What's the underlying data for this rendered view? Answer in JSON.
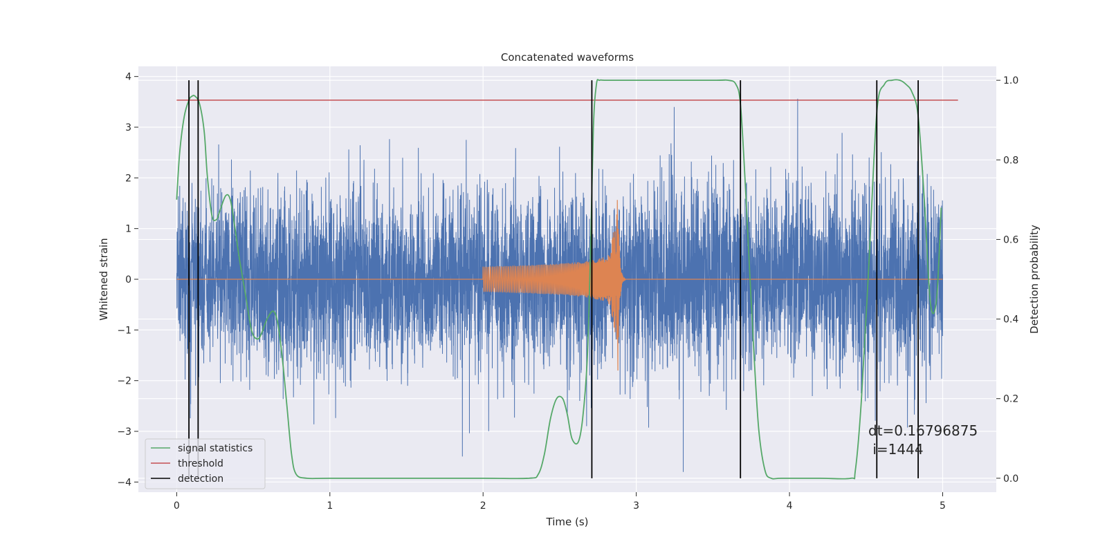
{
  "chart_data": {
    "type": "line",
    "title": "Concatenated waveforms",
    "xlabel": "Time (s)",
    "ylabel": "Whitened strain",
    "y2label": "Detection probability",
    "xlim": [
      -0.25,
      5.35
    ],
    "ylim": [
      -4.2,
      4.2
    ],
    "y2lim": [
      -0.035,
      1.035
    ],
    "x_ticks": [
      0,
      1,
      2,
      3,
      4,
      5
    ],
    "y_ticks": [
      4,
      3,
      2,
      1,
      0,
      -1,
      -2,
      -3,
      -4
    ],
    "y2_ticks": [
      1.0,
      0.8,
      0.6,
      0.4,
      0.2,
      0.0
    ],
    "x_tick_labels": [
      "0",
      "1",
      "2",
      "3",
      "4",
      "5"
    ],
    "y_tick_labels": [
      "4",
      "3",
      "2",
      "1",
      "0",
      "−1",
      "−2",
      "−3",
      "−4"
    ],
    "y2_tick_labels": [
      "1.0",
      "0.8",
      "0.6",
      "0.4",
      "0.2",
      "0.0"
    ],
    "grid": true,
    "legend_position": "lower-left",
    "colors": {
      "background": "#eaeaf2",
      "strain": "#4c72b0",
      "injection": "#dd8452",
      "signal": "#55a868",
      "threshold": "#c44e52",
      "detection": "#000000"
    },
    "series": [
      {
        "name": "strain",
        "description": "whitened detector noise, roughly Gaussian, sampled 0-5 s",
        "x_range": [
          0,
          5
        ],
        "amplitude_range": [
          -3.9,
          3.85
        ]
      },
      {
        "name": "injection",
        "description": "chirp signal from 2.0 s merging at ~2.88 s",
        "x_range": [
          0,
          5
        ],
        "chirp_start": 2.0,
        "merger_time": 2.88,
        "start_amplitude": 0.25,
        "peak_amplitude": 2.0
      },
      {
        "name": "signal statistics",
        "axis": "right",
        "x": [
          0.0,
          0.02,
          0.05,
          0.08,
          0.1,
          0.12,
          0.15,
          0.18,
          0.2,
          0.23,
          0.26,
          0.28,
          0.32,
          0.35,
          0.38,
          0.41,
          0.45,
          0.49,
          0.53,
          0.56,
          0.59,
          0.63,
          0.66,
          0.69,
          0.72,
          0.75,
          0.78,
          0.85,
          1.0,
          1.5,
          2.0,
          2.3,
          2.36,
          2.4,
          2.44,
          2.48,
          2.52,
          2.55,
          2.58,
          2.62,
          2.65,
          2.68,
          2.7,
          2.72,
          2.74,
          2.76,
          2.8,
          3.0,
          3.5,
          3.6,
          3.65,
          3.68,
          3.71,
          3.74,
          3.77,
          3.8,
          3.84,
          3.88,
          3.95,
          4.2,
          4.4,
          4.43,
          4.47,
          4.52,
          4.57,
          4.62,
          4.67,
          4.72,
          4.76,
          4.8,
          4.84,
          4.88,
          4.92,
          4.96,
          4.99
        ],
        "values": [
          0.7,
          0.82,
          0.91,
          0.95,
          0.96,
          0.96,
          0.94,
          0.87,
          0.76,
          0.66,
          0.65,
          0.67,
          0.71,
          0.7,
          0.63,
          0.55,
          0.46,
          0.37,
          0.35,
          0.37,
          0.4,
          0.42,
          0.39,
          0.3,
          0.18,
          0.06,
          0.01,
          0.0,
          0.0,
          0.0,
          0.0,
          0.0,
          0.01,
          0.06,
          0.15,
          0.2,
          0.2,
          0.16,
          0.1,
          0.09,
          0.15,
          0.3,
          0.55,
          0.88,
          0.99,
          1.0,
          1.0,
          1.0,
          1.0,
          1.0,
          0.99,
          0.94,
          0.75,
          0.52,
          0.3,
          0.12,
          0.02,
          0.0,
          0.0,
          0.0,
          0.0,
          0.02,
          0.2,
          0.55,
          0.92,
          0.99,
          1.0,
          1.0,
          0.99,
          0.97,
          0.91,
          0.7,
          0.44,
          0.45,
          0.68
        ]
      },
      {
        "name": "threshold",
        "axis": "right",
        "x": [
          0.0,
          5.1
        ],
        "values": [
          0.95,
          0.95
        ]
      },
      {
        "name": "detection",
        "type": "vlines",
        "x": [
          0.08,
          0.14,
          2.71,
          3.68,
          4.57,
          4.84
        ],
        "y2_range": [
          0.0,
          1.0
        ]
      }
    ],
    "legend": [
      "signal statistics",
      "threshold",
      "detection"
    ],
    "annotation": {
      "line1": "dt=0.16796875",
      "line2": " i=1444"
    }
  }
}
